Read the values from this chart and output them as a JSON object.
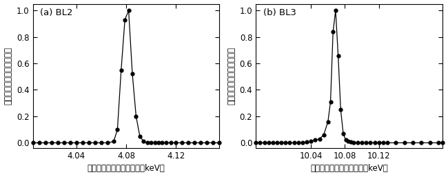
{
  "panel_a": {
    "label": "(a) BL2",
    "xlabel": "光のエネルギー（波長）（keV）",
    "ylabel": "レーザー強度（任意単位）",
    "xlim": [
      4.005,
      4.155
    ],
    "ylim": [
      -0.04,
      1.05
    ],
    "xticks": [
      4.04,
      4.08,
      4.12
    ],
    "yticks": [
      0.0,
      0.2,
      0.4,
      0.6,
      0.8,
      1.0
    ],
    "x": [
      4.005,
      4.01,
      4.015,
      4.02,
      4.025,
      4.03,
      4.035,
      4.04,
      4.045,
      4.05,
      4.055,
      4.06,
      4.065,
      4.07,
      4.073,
      4.076,
      4.079,
      4.082,
      4.085,
      4.088,
      4.091,
      4.094,
      4.097,
      4.1,
      4.103,
      4.106,
      4.109,
      4.112,
      4.116,
      4.12,
      4.125,
      4.13,
      4.135,
      4.14,
      4.145,
      4.15,
      4.155
    ],
    "y": [
      0.0,
      0.0,
      0.0,
      0.0,
      0.0,
      0.0,
      0.0,
      0.0,
      0.0,
      0.0,
      0.0,
      0.0,
      0.0,
      0.01,
      0.1,
      0.55,
      0.93,
      1.0,
      0.52,
      0.2,
      0.05,
      0.01,
      0.0,
      0.0,
      0.0,
      0.0,
      0.0,
      0.0,
      0.0,
      0.0,
      0.0,
      0.0,
      0.0,
      0.0,
      0.0,
      0.0,
      0.0
    ]
  },
  "panel_b": {
    "label": "(b) BL3",
    "xlabel": "光のエネルギー（波長）（keV）",
    "ylabel": "レーザー強度（任意単位）",
    "xlim": [
      9.975,
      10.195
    ],
    "ylim": [
      -0.04,
      1.05
    ],
    "xticks": [
      10.04,
      10.08,
      10.12
    ],
    "yticks": [
      0.0,
      0.2,
      0.4,
      0.6,
      0.8,
      1.0
    ],
    "x": [
      9.975,
      9.98,
      9.985,
      9.99,
      9.995,
      10.0,
      10.005,
      10.01,
      10.015,
      10.02,
      10.025,
      10.03,
      10.035,
      10.04,
      10.045,
      10.05,
      10.055,
      10.06,
      10.063,
      10.066,
      10.069,
      10.072,
      10.075,
      10.078,
      10.081,
      10.084,
      10.087,
      10.09,
      10.095,
      10.1,
      10.105,
      10.11,
      10.115,
      10.12,
      10.125,
      10.13,
      10.14,
      10.15,
      10.16,
      10.17,
      10.18,
      10.19,
      10.195
    ],
    "y": [
      0.0,
      0.0,
      0.0,
      0.0,
      0.0,
      0.0,
      0.0,
      0.0,
      0.0,
      0.0,
      0.0,
      0.0,
      0.005,
      0.01,
      0.02,
      0.03,
      0.06,
      0.16,
      0.31,
      0.84,
      1.0,
      0.66,
      0.25,
      0.07,
      0.02,
      0.01,
      0.005,
      0.0,
      0.0,
      0.0,
      0.0,
      0.0,
      0.0,
      0.0,
      0.0,
      0.0,
      0.0,
      0.0,
      0.0,
      0.0,
      0.0,
      0.0,
      0.0
    ]
  },
  "line_color": "#000000",
  "marker": "o",
  "markersize": 3.5,
  "linewidth": 0.9,
  "bg_color": "#ffffff",
  "label_fontsize": 8.5,
  "tick_fontsize": 8.5,
  "annot_fontsize": 9.5
}
